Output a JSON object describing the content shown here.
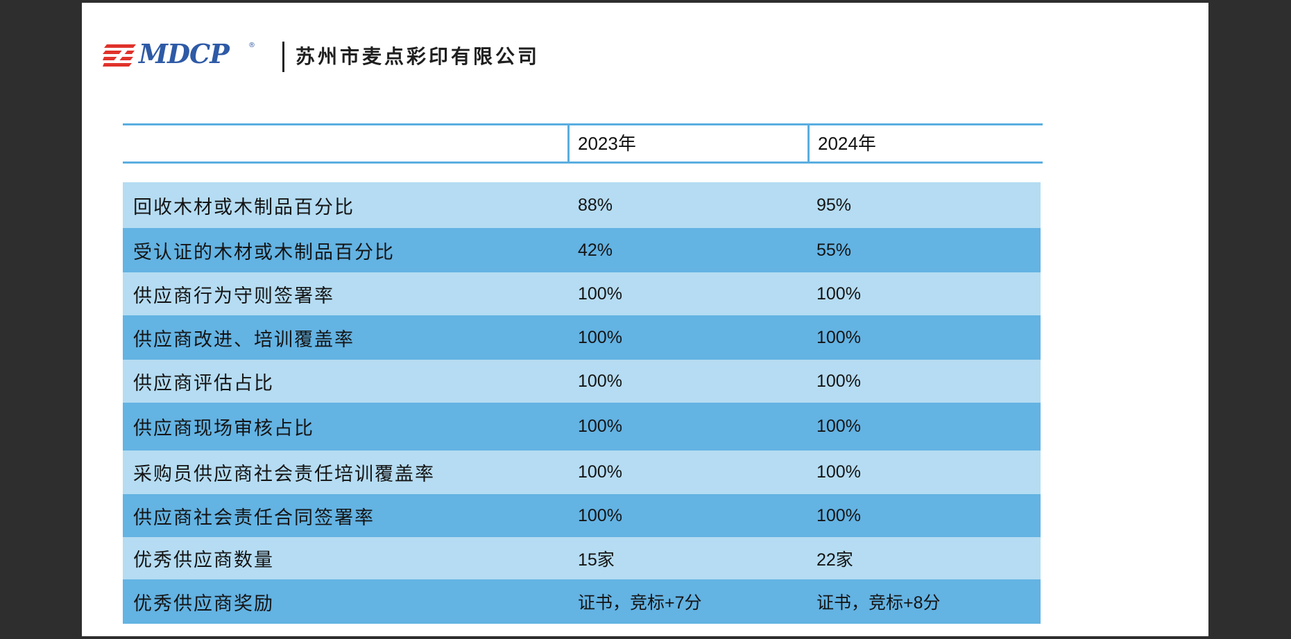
{
  "header": {
    "logo_text": "MDCP",
    "logo_reg": "®",
    "company_name": "苏州市麦点彩印有限公司"
  },
  "table": {
    "columns": [
      "",
      "2023年",
      "2024年"
    ],
    "rows": [
      {
        "label": "回收木材或木制品百分比",
        "y2023": "88%",
        "y2024": "95%"
      },
      {
        "label": "受认证的木材或木制品百分比",
        "y2023": "42%",
        "y2024": "55%"
      },
      {
        "label": "供应商行为守则签署率",
        "y2023": "100%",
        "y2024": "100%"
      },
      {
        "label": "供应商改进、培训覆盖率",
        "y2023": "100%",
        "y2024": "100%"
      },
      {
        "label": "供应商评估占比",
        "y2023": "100%",
        "y2024": "100%"
      },
      {
        "label": "供应商现场审核占比",
        "y2023": "100%",
        "y2024": "100%"
      },
      {
        "label": "采购员供应商社会责任培训覆盖率",
        "y2023": "100%",
        "y2024": "100%"
      },
      {
        "label": "供应商社会责任合同签署率",
        "y2023": "100%",
        "y2024": "100%"
      },
      {
        "label": "优秀供应商数量",
        "y2023": "15家",
        "y2024": "22家"
      },
      {
        "label": "优秀供应商奖励",
        "y2023": "证书，竞标+7分",
        "y2024": "证书，竞标+8分"
      }
    ]
  },
  "colors": {
    "row_light": "#b5dcf2",
    "row_dark": "#63b3e3",
    "rule": "#5aaee0",
    "logo_blue": "#2e5aa6",
    "logo_red": "#e0322b"
  }
}
